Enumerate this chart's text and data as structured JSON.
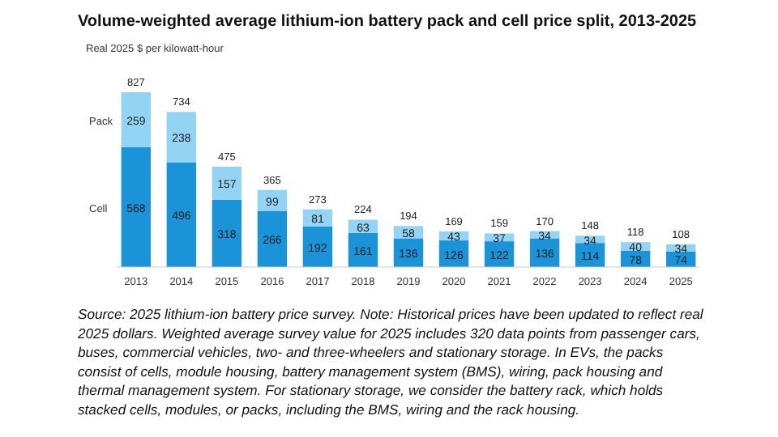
{
  "chart_data": {
    "type": "bar",
    "title": "Volume-weighted average lithium-ion battery pack and cell price split, 2013-2025",
    "ylabel": "Real 2025 $ per kilowatt-hour",
    "categories": [
      "2013",
      "2014",
      "2015",
      "2016",
      "2017",
      "2018",
      "2019",
      "2020",
      "2021",
      "2022",
      "2023",
      "2024",
      "2025"
    ],
    "stacked": true,
    "data_labels": true,
    "legend": "left",
    "series": [
      {
        "name": "Cell",
        "color": "#1b93d8",
        "values": [
          568,
          496,
          318,
          266,
          192,
          161,
          136,
          126,
          122,
          136,
          114,
          78,
          74
        ]
      },
      {
        "name": "Pack",
        "color": "#93d4f4",
        "values": [
          259,
          238,
          157,
          99,
          81,
          63,
          58,
          43,
          37,
          34,
          34,
          40,
          34
        ]
      }
    ],
    "totals": [
      "827",
      "734",
      "475",
      "365",
      "273",
      "224",
      "194",
      "169",
      "159",
      "170",
      "148",
      "118",
      "108"
    ],
    "annotations": [
      "Source: 2025 lithium-ion battery price survey. Note: Historical prices have been updated to reflect real 2025 dollars. Weighted average survey value for 2025 includes 320 data points from passenger cars, buses, commercial vehicles, two- and three-wheelers and stationary storage.  In EVs, the packs consist of cells, module housing, battery management system (BMS), wiring, pack housing and thermal management system. For stationary storage, we consider the battery rack, which holds stacked cells, modules, or packs, including the BMS, wiring and the rack housing."
    ]
  }
}
